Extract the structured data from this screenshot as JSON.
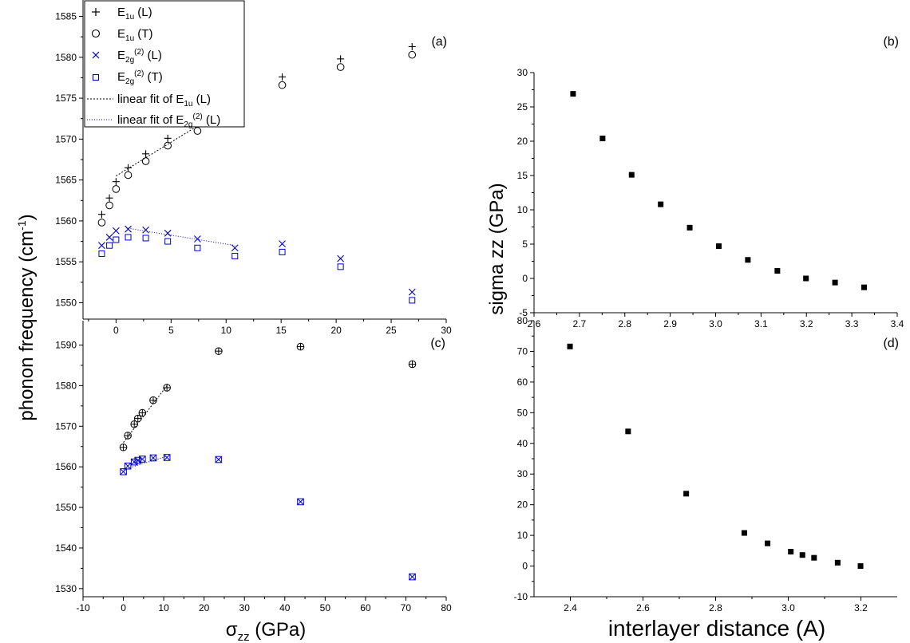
{
  "axis_labels": {
    "left_ylabel": "phonon frequency (cm",
    "left_ylabel_sup": "-1",
    "left_ylabel_tail": ")",
    "left_xlabel_sigma": "σ",
    "left_xlabel_sub": "zz",
    "left_xlabel_tail": " (GPa)",
    "right_ylabel": "sigma zz (GPa)",
    "right_xlabel": "interlayer distance (A)"
  },
  "legend": {
    "e1u_L": {
      "base": "E",
      "sub": "1u",
      "suffix": " (L)"
    },
    "e1u_T": {
      "base": "E",
      "sub": "1u",
      "suffix": " (T)"
    },
    "e2g_L": {
      "base": "E",
      "sub": "2g",
      "sup": "(2)",
      "suffix": " (L)"
    },
    "e2g_T": {
      "base": "E",
      "sub": "2g",
      "sup": "(2)",
      "suffix": " (T)"
    },
    "fit1": {
      "text": "linear fit of E",
      "sub": "1u",
      "suffix": " (L)"
    },
    "fit2": {
      "text": "linear fit of E",
      "sub": "2g",
      "sup": "(2)",
      "suffix": " (L)"
    }
  },
  "colors": {
    "black_series": "#000000",
    "blue_series": "#0000cc",
    "axes": "#000000"
  },
  "chart_data": [
    {
      "id": "a",
      "panel_label": "(a)",
      "type": "scatter",
      "xlim": [
        -3,
        30
      ],
      "ylim": [
        1548,
        1587
      ],
      "xticks": [
        0,
        5,
        10,
        15,
        20,
        25,
        30
      ],
      "yticks": [
        1550,
        1555,
        1560,
        1565,
        1570,
        1575,
        1580,
        1585
      ],
      "series": [
        {
          "name": "E1u (L)",
          "marker": "plus",
          "color": "#000000",
          "x": [
            -1.3,
            -0.6,
            0,
            1.1,
            2.7,
            4.7,
            7.4,
            10.8,
            15.1,
            20.4,
            26.9
          ],
          "y": [
            1560.8,
            1562.8,
            1564.8,
            1566.5,
            1568.2,
            1570.1,
            1572.0,
            1574.0,
            1577.6,
            1579.8,
            1581.3
          ]
        },
        {
          "name": "E1u (T)",
          "marker": "circle",
          "color": "#000000",
          "x": [
            -1.3,
            -0.6,
            0,
            1.1,
            2.7,
            4.7,
            7.4,
            10.8,
            15.1,
            20.4,
            26.9
          ],
          "y": [
            1559.8,
            1561.9,
            1563.9,
            1565.6,
            1567.3,
            1569.2,
            1571.0,
            1572.9,
            1576.6,
            1578.8,
            1580.3
          ]
        },
        {
          "name": "E2g(2) (L)",
          "marker": "x",
          "color": "#0000cc",
          "x": [
            -1.3,
            -0.6,
            0,
            1.1,
            2.7,
            4.7,
            7.4,
            10.8,
            15.1,
            20.4,
            26.9
          ],
          "y": [
            1557.0,
            1558.0,
            1558.8,
            1559.0,
            1558.9,
            1558.5,
            1557.8,
            1556.7,
            1557.2,
            1555.4,
            1551.3
          ]
        },
        {
          "name": "E2g(2) (T)",
          "marker": "square",
          "color": "#0000cc",
          "x": [
            -1.3,
            -0.6,
            0,
            1.1,
            2.7,
            4.7,
            7.4,
            10.8,
            15.1,
            20.4,
            26.9
          ],
          "y": [
            1556.0,
            1557.0,
            1557.7,
            1558.0,
            1557.9,
            1557.5,
            1556.7,
            1555.7,
            1556.2,
            1554.4,
            1550.3
          ]
        }
      ],
      "fits": [
        {
          "name": "linear fit of E1u (L)",
          "color": "#000000",
          "x": [
            0,
            10.8
          ],
          "y": [
            1565.5,
            1574.4
          ]
        },
        {
          "name": "linear fit of E2g(2) (L)",
          "color": "#0000cc",
          "x": [
            1.1,
            10.8
          ],
          "y": [
            1559.1,
            1557.0
          ]
        }
      ]
    },
    {
      "id": "b",
      "panel_label": "(b)",
      "type": "scatter",
      "xlim": [
        2.6,
        3.4
      ],
      "ylim": [
        -5,
        30
      ],
      "xticks": [
        2.6,
        2.7,
        2.8,
        2.9,
        3.0,
        3.1,
        3.2,
        3.3,
        3.4
      ],
      "yticks": [
        -5,
        0,
        5,
        10,
        15,
        20,
        25,
        30
      ],
      "series": [
        {
          "marker": "filled-square",
          "color": "#000000",
          "x": [
            2.686,
            2.751,
            2.815,
            2.879,
            2.943,
            3.007,
            3.071,
            3.136,
            3.199,
            3.263,
            3.327
          ],
          "y": [
            26.9,
            20.4,
            15.1,
            10.8,
            7.4,
            4.7,
            2.7,
            1.1,
            0.0,
            -0.6,
            -1.3
          ]
        }
      ]
    },
    {
      "id": "c",
      "panel_label": "(c)",
      "type": "scatter",
      "xlim": [
        -10,
        80
      ],
      "ylim": [
        1528,
        1596
      ],
      "xticks": [
        -10,
        0,
        10,
        20,
        30,
        40,
        50,
        60,
        70,
        80
      ],
      "yticks": [
        1530,
        1540,
        1550,
        1560,
        1570,
        1580,
        1590
      ],
      "series": [
        {
          "marker": "circle-plus",
          "color": "#000000",
          "x": [
            0,
            1.1,
            2.7,
            3.6,
            4.7,
            7.4,
            10.8,
            23.6,
            43.9,
            71.6
          ],
          "y": [
            1564.8,
            1567.7,
            1570.5,
            1571.9,
            1573.3,
            1576.4,
            1579.5,
            1588.5,
            1589.6,
            1585.3
          ]
        },
        {
          "marker": "square-x",
          "color": "#0000cc",
          "x": [
            0,
            1.1,
            2.7,
            3.6,
            4.7,
            7.4,
            10.8,
            23.6,
            43.9,
            71.6
          ],
          "y": [
            1558.8,
            1560.2,
            1561.2,
            1561.6,
            1561.9,
            1562.2,
            1562.3,
            1561.8,
            1551.4,
            1532.9
          ]
        }
      ],
      "fits": [
        {
          "color": "#000000",
          "x": [
            0,
            10.8
          ],
          "y": [
            1566.0,
            1580.0
          ]
        },
        {
          "color": "#0000cc",
          "x": [
            0,
            10.8
          ],
          "y": [
            1559.3,
            1562.6
          ]
        }
      ]
    },
    {
      "id": "d",
      "panel_label": "(d)",
      "type": "scatter",
      "xlim": [
        2.3,
        3.3
      ],
      "ylim": [
        -10,
        80
      ],
      "xticks": [
        2.4,
        2.6,
        2.8,
        3.0,
        3.2
      ],
      "yticks": [
        -10,
        0,
        10,
        20,
        30,
        40,
        50,
        60,
        70,
        80
      ],
      "series": [
        {
          "marker": "filled-square",
          "color": "#000000",
          "x": [
            2.399,
            2.559,
            2.719,
            2.879,
            2.943,
            3.007,
            3.039,
            3.071,
            3.136,
            3.199
          ],
          "y": [
            71.6,
            43.9,
            23.6,
            10.8,
            7.4,
            4.7,
            3.6,
            2.7,
            1.1,
            0.0
          ]
        }
      ]
    }
  ]
}
